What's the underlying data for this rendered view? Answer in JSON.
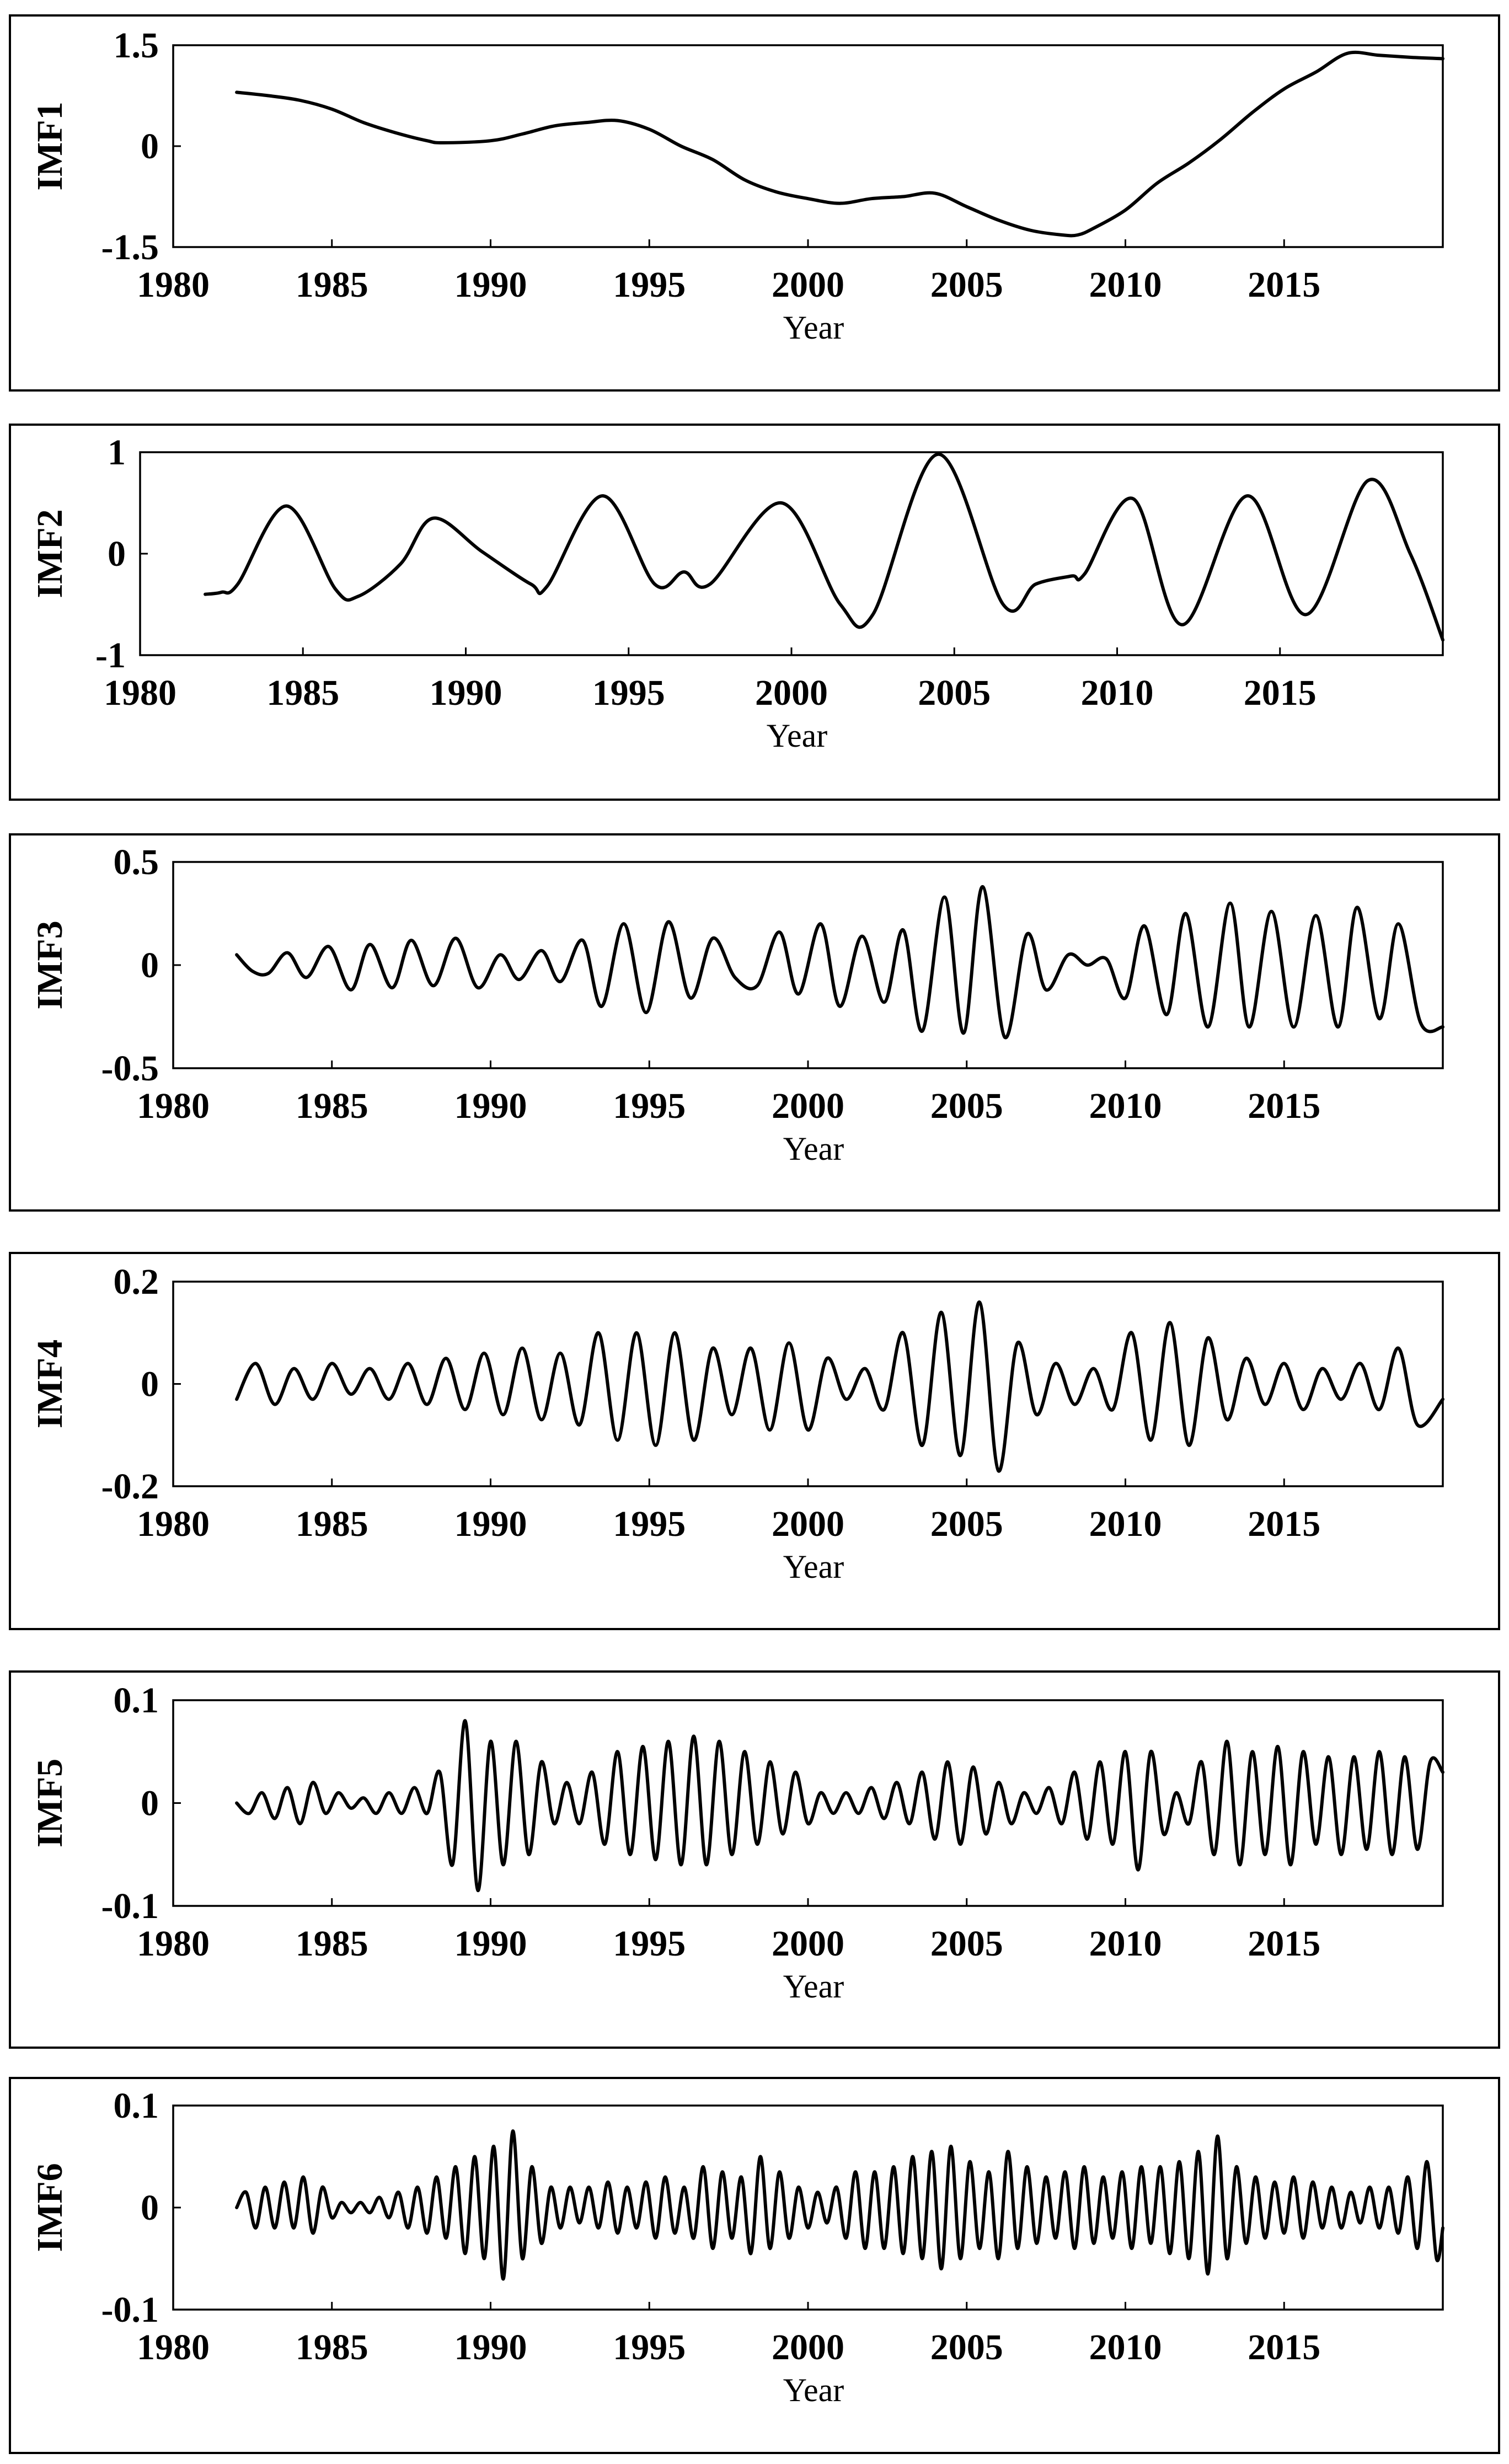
{
  "chart_data": [
    {
      "type": "line",
      "ylabel": "IMF1",
      "xlabel": "Year",
      "xlim": [
        1980,
        2020
      ],
      "ylim": [
        -1.5,
        1.5
      ],
      "yticks": [
        "1.5",
        "0",
        "-1.5"
      ],
      "xticks": [
        "1980",
        "1985",
        "1990",
        "1995",
        "2000",
        "2005",
        "2010",
        "2015"
      ],
      "series": [
        {
          "x": [
            1982,
            1983,
            1984,
            1985,
            1986,
            1987,
            1988,
            1988.5,
            1990,
            1991,
            1992,
            1993,
            1994,
            1995,
            1996,
            1997,
            1998,
            1999,
            2000,
            2001,
            2002,
            2003,
            2004,
            2005,
            2006,
            2007,
            2008,
            2008.5,
            2009,
            2010,
            2011,
            2012,
            2013,
            2014,
            2015,
            2016,
            2017,
            2018,
            2019,
            2020
          ],
          "values": [
            0.8,
            0.75,
            0.68,
            0.55,
            0.35,
            0.2,
            0.08,
            0.05,
            0.08,
            0.18,
            0.3,
            0.35,
            0.38,
            0.25,
            0.0,
            -0.2,
            -0.5,
            -0.68,
            -0.78,
            -0.85,
            -0.78,
            -0.75,
            -0.7,
            -0.9,
            -1.1,
            -1.25,
            -1.32,
            -1.32,
            -1.22,
            -0.95,
            -0.55,
            -0.25,
            0.1,
            0.5,
            0.85,
            1.1,
            1.38,
            1.35,
            1.32,
            1.3
          ]
        }
      ]
    },
    {
      "type": "line",
      "ylabel": "IMF2",
      "xlabel": "Year",
      "xlim": [
        1980,
        2020
      ],
      "ylim": [
        -1,
        1
      ],
      "yticks": [
        "1",
        "0",
        "-1"
      ],
      "xticks": [
        "1980",
        "1985",
        "1990",
        "1995",
        "2000",
        "2005",
        "2010",
        "2015"
      ],
      "series": [
        {
          "x": [
            1982,
            1982.5,
            1983,
            1984.5,
            1986,
            1986.7,
            1988,
            1989,
            1990.5,
            1992,
            1992.5,
            1994.2,
            1995.8,
            1996.7,
            1997.5,
            1999.7,
            2001.5,
            2002.5,
            2004.5,
            2006.5,
            2007.5,
            2008.6,
            2009,
            2010.5,
            2012,
            2014,
            2015.8,
            2017.7,
            2019,
            2020
          ],
          "values": [
            -0.4,
            -0.38,
            -0.3,
            0.47,
            -0.35,
            -0.42,
            -0.1,
            0.35,
            0.02,
            -0.3,
            -0.32,
            0.57,
            -0.3,
            -0.18,
            -0.3,
            0.5,
            -0.5,
            -0.6,
            0.98,
            -0.5,
            -0.3,
            -0.22,
            -0.2,
            0.54,
            -0.7,
            0.57,
            -0.6,
            0.72,
            0.0,
            -0.85
          ]
        }
      ]
    },
    {
      "type": "line",
      "ylabel": "IMF3",
      "xlabel": "Year",
      "xlim": [
        1980,
        2020
      ],
      "ylim": [
        -0.5,
        0.5
      ],
      "yticks": [
        "0.5",
        "0",
        "-0.5"
      ],
      "xticks": [
        "1980",
        "1985",
        "1990",
        "1995",
        "2000",
        "2005",
        "2010",
        "2015"
      ],
      "series": [
        {
          "x": [
            1982,
            1982.5,
            1983,
            1983.6,
            1984.2,
            1984.9,
            1985.6,
            1986.2,
            1986.9,
            1987.5,
            1988.2,
            1988.9,
            1989.6,
            1990.3,
            1990.9,
            1991.6,
            1992.2,
            1992.9,
            1993.5,
            1994.2,
            1994.9,
            1995.6,
            1996.3,
            1997.0,
            1997.7,
            1998.4,
            1999.1,
            1999.7,
            2000.4,
            2001.0,
            2001.7,
            2002.4,
            2003.0,
            2003.6,
            2004.3,
            2004.9,
            2005.5,
            2006.2,
            2006.9,
            2007.5,
            2008.2,
            2008.8,
            2009.4,
            2010.0,
            2010.6,
            2011.3,
            2011.9,
            2012.6,
            2013.3,
            2013.9,
            2014.6,
            2015.3,
            2016.0,
            2016.7,
            2017.3,
            2018.0,
            2018.6,
            2019.3,
            2020
          ],
          "values": [
            0.05,
            -0.03,
            -0.04,
            0.06,
            -0.06,
            0.09,
            -0.12,
            0.1,
            -0.11,
            0.12,
            -0.1,
            0.13,
            -0.11,
            0.05,
            -0.07,
            0.07,
            -0.08,
            0.12,
            -0.2,
            0.2,
            -0.23,
            0.21,
            -0.16,
            0.13,
            -0.06,
            -0.1,
            0.16,
            -0.14,
            0.2,
            -0.2,
            0.14,
            -0.18,
            0.17,
            -0.32,
            0.33,
            -0.33,
            0.38,
            -0.35,
            0.15,
            -0.12,
            0.05,
            0.0,
            0.03,
            -0.16,
            0.19,
            -0.24,
            0.25,
            -0.3,
            0.3,
            -0.3,
            0.26,
            -0.3,
            0.24,
            -0.3,
            0.28,
            -0.26,
            0.2,
            -0.28,
            -0.3
          ]
        }
      ]
    },
    {
      "type": "line",
      "ylabel": "IMF4",
      "xlabel": "Year",
      "xlim": [
        1980,
        2020
      ],
      "ylim": [
        -0.2,
        0.2
      ],
      "yticks": [
        "0.2",
        "0",
        "-0.2"
      ],
      "xticks": [
        "1980",
        "1985",
        "1990",
        "1995",
        "2000",
        "2005",
        "2010",
        "2015"
      ],
      "series": [
        {
          "x": [
            1982,
            1982.6,
            1983.2,
            1983.8,
            1984.4,
            1985.0,
            1985.6,
            1986.2,
            1986.8,
            1987.4,
            1988.0,
            1988.6,
            1989.2,
            1989.8,
            1990.4,
            1991.0,
            1991.6,
            1992.2,
            1992.8,
            1993.4,
            1994.0,
            1994.6,
            1995.2,
            1995.8,
            1996.4,
            1997.0,
            1997.6,
            1998.2,
            1998.8,
            1999.4,
            2000.0,
            2000.6,
            2001.2,
            2001.8,
            2002.4,
            2003.0,
            2003.6,
            2004.2,
            2004.8,
            2005.4,
            2006.0,
            2006.6,
            2007.2,
            2007.8,
            2008.4,
            2009.0,
            2009.6,
            2010.2,
            2010.8,
            2011.4,
            2012.0,
            2012.6,
            2013.2,
            2013.8,
            2014.4,
            2015.0,
            2015.6,
            2016.2,
            2016.8,
            2017.4,
            2018.0,
            2018.6,
            2019.2,
            2020
          ],
          "values": [
            -0.03,
            0.04,
            -0.04,
            0.03,
            -0.03,
            0.04,
            -0.02,
            0.03,
            -0.03,
            0.04,
            -0.04,
            0.05,
            -0.05,
            0.06,
            -0.06,
            0.07,
            -0.07,
            0.06,
            -0.08,
            0.1,
            -0.11,
            0.1,
            -0.12,
            0.1,
            -0.11,
            0.07,
            -0.06,
            0.07,
            -0.09,
            0.08,
            -0.09,
            0.05,
            -0.03,
            0.03,
            -0.05,
            0.1,
            -0.12,
            0.14,
            -0.14,
            0.16,
            -0.17,
            0.08,
            -0.06,
            0.04,
            -0.04,
            0.03,
            -0.05,
            0.1,
            -0.11,
            0.12,
            -0.12,
            0.09,
            -0.07,
            0.05,
            -0.04,
            0.04,
            -0.05,
            0.03,
            -0.03,
            0.04,
            -0.05,
            0.07,
            -0.08,
            -0.03
          ]
        }
      ]
    },
    {
      "type": "line",
      "ylabel": "IMF5",
      "xlabel": "Year",
      "xlim": [
        1980,
        2020
      ],
      "ylim": [
        -0.1,
        0.1
      ],
      "yticks": [
        "0.1",
        "0",
        "-0.1"
      ],
      "xticks": [
        "1980",
        "1985",
        "1990",
        "1995",
        "2000",
        "2005",
        "2010",
        "2015"
      ],
      "series": [
        {
          "x": [
            1982,
            1982.4,
            1982.8,
            1983.2,
            1983.6,
            1984.0,
            1984.4,
            1984.8,
            1985.2,
            1985.6,
            1986.0,
            1986.4,
            1986.8,
            1987.2,
            1987.6,
            1988.0,
            1988.4,
            1988.8,
            1989.2,
            1989.6,
            1990.0,
            1990.4,
            1990.8,
            1991.2,
            1991.6,
            1992.0,
            1992.4,
            1992.8,
            1993.2,
            1993.6,
            1994.0,
            1994.4,
            1994.8,
            1995.2,
            1995.6,
            1996.0,
            1996.4,
            1996.8,
            1997.2,
            1997.6,
            1998.0,
            1998.4,
            1998.8,
            1999.2,
            1999.6,
            2000.0,
            2000.4,
            2000.8,
            2001.2,
            2001.6,
            2002.0,
            2002.4,
            2002.8,
            2003.2,
            2003.6,
            2004.0,
            2004.4,
            2004.8,
            2005.2,
            2005.6,
            2006.0,
            2006.4,
            2006.8,
            2007.2,
            2007.6,
            2008.0,
            2008.4,
            2008.8,
            2009.2,
            2009.6,
            2010.0,
            2010.4,
            2010.8,
            2011.2,
            2011.6,
            2012.0,
            2012.4,
            2012.8,
            2013.2,
            2013.6,
            2014.0,
            2014.4,
            2014.8,
            2015.2,
            2015.6,
            2016.0,
            2016.4,
            2016.8,
            2017.2,
            2017.6,
            2018.0,
            2018.4,
            2018.8,
            2019.2,
            2019.6,
            2020
          ],
          "values": [
            0.0,
            -0.01,
            0.01,
            -0.015,
            0.015,
            -0.02,
            0.02,
            -0.01,
            0.01,
            -0.005,
            0.005,
            -0.01,
            0.01,
            -0.01,
            0.015,
            -0.01,
            0.03,
            -0.06,
            0.08,
            -0.085,
            0.06,
            -0.06,
            0.06,
            -0.05,
            0.04,
            -0.02,
            0.02,
            -0.02,
            0.03,
            -0.04,
            0.05,
            -0.05,
            0.055,
            -0.055,
            0.06,
            -0.06,
            0.065,
            -0.06,
            0.06,
            -0.05,
            0.05,
            -0.04,
            0.04,
            -0.03,
            0.03,
            -0.02,
            0.01,
            -0.01,
            0.01,
            -0.01,
            0.015,
            -0.015,
            0.02,
            -0.02,
            0.03,
            -0.035,
            0.04,
            -0.04,
            0.035,
            -0.03,
            0.02,
            -0.02,
            0.01,
            -0.01,
            0.015,
            -0.02,
            0.03,
            -0.035,
            0.04,
            -0.04,
            0.05,
            -0.065,
            0.05,
            -0.03,
            0.01,
            -0.02,
            0.04,
            -0.05,
            0.06,
            -0.06,
            0.05,
            -0.05,
            0.055,
            -0.06,
            0.05,
            -0.04,
            0.045,
            -0.05,
            0.045,
            -0.045,
            0.05,
            -0.05,
            0.045,
            -0.045,
            0.04,
            0.03
          ]
        }
      ]
    },
    {
      "type": "line",
      "ylabel": "IMF6",
      "xlabel": "Year",
      "xlim": [
        1980,
        2020
      ],
      "ylim": [
        -0.1,
        0.1
      ],
      "yticks": [
        "0.1",
        "0",
        "-0.1"
      ],
      "xticks": [
        "1980",
        "1985",
        "1990",
        "1995",
        "2000",
        "2005",
        "2010",
        "2015"
      ],
      "series": [
        {
          "x": [
            1982,
            1982.3,
            1982.6,
            1982.9,
            1983.2,
            1983.5,
            1983.8,
            1984.1,
            1984.4,
            1984.7,
            1985.0,
            1985.3,
            1985.6,
            1985.9,
            1986.2,
            1986.5,
            1986.8,
            1987.1,
            1987.4,
            1987.7,
            1988.0,
            1988.3,
            1988.6,
            1988.9,
            1989.2,
            1989.5,
            1989.8,
            1990.1,
            1990.4,
            1990.7,
            1991.0,
            1991.3,
            1991.6,
            1991.9,
            1992.2,
            1992.5,
            1992.8,
            1993.1,
            1993.4,
            1993.7,
            1994.0,
            1994.3,
            1994.6,
            1994.9,
            1995.2,
            1995.5,
            1995.8,
            1996.1,
            1996.4,
            1996.7,
            1997.0,
            1997.3,
            1997.6,
            1997.9,
            1998.2,
            1998.5,
            1998.8,
            1999.1,
            1999.4,
            1999.7,
            2000.0,
            2000.3,
            2000.6,
            2000.9,
            2001.2,
            2001.5,
            2001.8,
            2002.1,
            2002.4,
            2002.7,
            2003.0,
            2003.3,
            2003.6,
            2003.9,
            2004.2,
            2004.5,
            2004.8,
            2005.1,
            2005.4,
            2005.7,
            2006.0,
            2006.3,
            2006.6,
            2006.9,
            2007.2,
            2007.5,
            2007.8,
            2008.1,
            2008.4,
            2008.7,
            2009.0,
            2009.3,
            2009.6,
            2009.9,
            2010.2,
            2010.5,
            2010.8,
            2011.1,
            2011.4,
            2011.7,
            2012.0,
            2012.3,
            2012.6,
            2012.9,
            2013.2,
            2013.5,
            2013.8,
            2014.1,
            2014.4,
            2014.7,
            2015.0,
            2015.3,
            2015.6,
            2015.9,
            2016.2,
            2016.5,
            2016.8,
            2017.1,
            2017.4,
            2017.7,
            2018.0,
            2018.3,
            2018.6,
            2018.9,
            2019.2,
            2019.5,
            2019.8,
            2020
          ],
          "values": [
            0.0,
            0.015,
            -0.02,
            0.02,
            -0.02,
            0.025,
            -0.02,
            0.03,
            -0.025,
            0.02,
            -0.01,
            0.005,
            -0.005,
            0.005,
            -0.005,
            0.01,
            -0.01,
            0.015,
            -0.02,
            0.02,
            -0.025,
            0.03,
            -0.03,
            0.04,
            -0.045,
            0.05,
            -0.05,
            0.06,
            -0.07,
            0.075,
            -0.05,
            0.04,
            -0.035,
            0.02,
            -0.02,
            0.02,
            -0.015,
            0.02,
            -0.02,
            0.025,
            -0.025,
            0.02,
            -0.02,
            0.025,
            -0.03,
            0.03,
            -0.025,
            0.02,
            -0.03,
            0.04,
            -0.04,
            0.035,
            -0.03,
            0.03,
            -0.045,
            0.05,
            -0.04,
            0.035,
            -0.03,
            0.02,
            -0.02,
            0.015,
            -0.015,
            0.02,
            -0.03,
            0.035,
            -0.04,
            0.035,
            -0.04,
            0.04,
            -0.045,
            0.05,
            -0.05,
            0.055,
            -0.06,
            0.06,
            -0.05,
            0.045,
            -0.04,
            0.035,
            -0.05,
            0.055,
            -0.04,
            0.04,
            -0.035,
            0.03,
            -0.03,
            0.035,
            -0.04,
            0.04,
            -0.035,
            0.03,
            -0.03,
            0.035,
            -0.04,
            0.04,
            -0.035,
            0.04,
            -0.045,
            0.045,
            -0.05,
            0.055,
            -0.065,
            0.07,
            -0.05,
            0.04,
            -0.035,
            0.03,
            -0.03,
            0.025,
            -0.025,
            0.03,
            -0.03,
            0.025,
            -0.02,
            0.02,
            -0.02,
            0.015,
            -0.015,
            0.02,
            -0.02,
            0.02,
            -0.025,
            0.03,
            -0.04,
            0.045,
            -0.05,
            -0.02
          ]
        }
      ]
    }
  ]
}
